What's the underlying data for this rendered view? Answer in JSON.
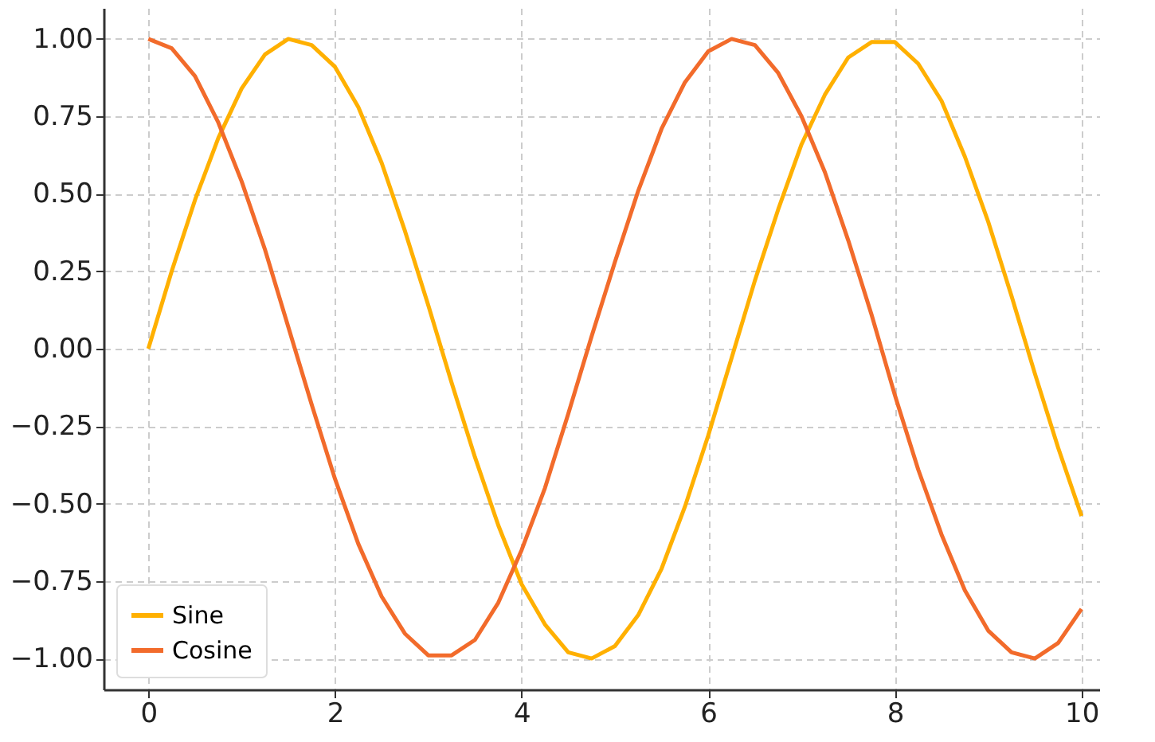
{
  "chart_data": {
    "type": "line",
    "x": [
      0,
      0.25,
      0.5,
      0.75,
      1,
      1.25,
      1.5,
      1.75,
      2,
      2.25,
      2.5,
      2.75,
      3,
      3.25,
      3.5,
      3.75,
      4,
      4.25,
      4.5,
      4.75,
      5,
      5.25,
      5.5,
      5.75,
      6,
      6.25,
      6.5,
      6.75,
      7,
      7.25,
      7.5,
      7.75,
      8,
      8.25,
      8.5,
      8.75,
      9,
      9.25,
      9.5,
      9.75,
      10
    ],
    "series": [
      {
        "name": "Sine",
        "color": "#ffb000",
        "values": [
          0,
          0.25,
          0.48,
          0.68,
          0.84,
          0.95,
          1.0,
          0.98,
          0.91,
          0.78,
          0.6,
          0.38,
          0.14,
          -0.11,
          -0.35,
          -0.57,
          -0.76,
          -0.89,
          -0.98,
          -1.0,
          -0.96,
          -0.86,
          -0.71,
          -0.51,
          -0.28,
          -0.03,
          0.22,
          0.45,
          0.66,
          0.82,
          0.94,
          0.99,
          0.99,
          0.92,
          0.8,
          0.62,
          0.41,
          0.17,
          -0.08,
          -0.32,
          -0.54
        ]
      },
      {
        "name": "Cosine",
        "color": "#f26b2b",
        "values": [
          1.0,
          0.97,
          0.88,
          0.73,
          0.54,
          0.32,
          0.07,
          -0.18,
          -0.42,
          -0.63,
          -0.8,
          -0.92,
          -0.99,
          -0.99,
          -0.94,
          -0.82,
          -0.65,
          -0.45,
          -0.21,
          0.04,
          0.28,
          0.51,
          0.71,
          0.86,
          0.96,
          1.0,
          0.98,
          0.89,
          0.75,
          0.57,
          0.35,
          0.11,
          -0.15,
          -0.39,
          -0.6,
          -0.78,
          -0.91,
          -0.98,
          -1.0,
          -0.95,
          -0.84
        ]
      }
    ],
    "xlim": [
      -0.48,
      10.19
    ],
    "xticks": [
      0,
      2,
      4,
      6,
      8,
      10
    ],
    "ylim": [
      -1.1,
      1.1
    ],
    "yticks": [
      {
        "value": -1,
        "label": "−1.00"
      },
      {
        "value": -0.75,
        "label": "−0.75"
      },
      {
        "value": -0.5,
        "label": "−0.50"
      },
      {
        "value": -0.25,
        "label": "−0.25"
      },
      {
        "value": 0,
        "label": "0.00"
      },
      {
        "value": 0.25,
        "label": "0.25"
      },
      {
        "value": 0.5,
        "label": "0.50"
      },
      {
        "value": 0.75,
        "label": "0.75"
      },
      {
        "value": 1,
        "label": "1.00"
      }
    ],
    "grid": true,
    "legend": "bottom left",
    "line_style": "solid",
    "marker": "none"
  }
}
